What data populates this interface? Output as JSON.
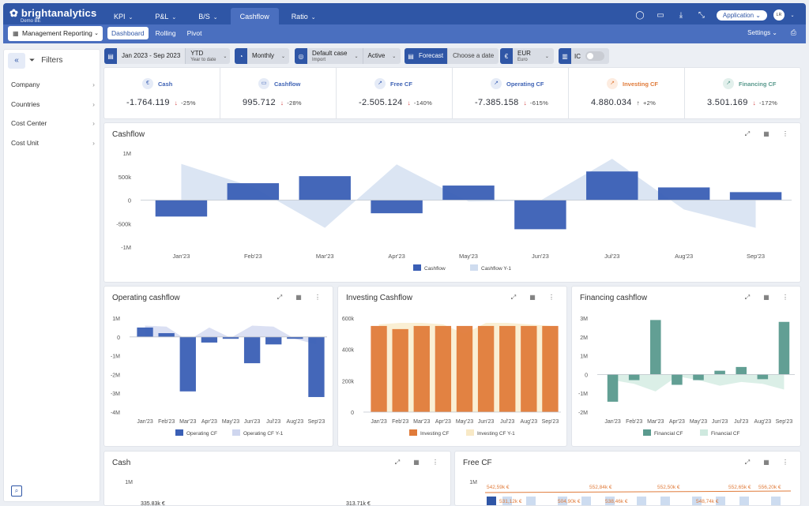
{
  "app": {
    "logo": "brightanalytics",
    "logo_sub": "Demo BE"
  },
  "topnav": [
    {
      "label": "KPI",
      "dropdown": true
    },
    {
      "label": "P&L",
      "dropdown": true
    },
    {
      "label": "B/S",
      "dropdown": true
    },
    {
      "label": "Cashflow",
      "dropdown": false,
      "active": true
    },
    {
      "label": "Ratio",
      "dropdown": true
    }
  ],
  "header_icons": [
    "chat-icon",
    "keyboard-icon",
    "download-icon",
    "compress-icon"
  ],
  "app_select": "Application",
  "avatar": "LR",
  "mgmt_select": "Management Reporting",
  "subtabs": [
    "Dashboard",
    "Rolling",
    "Pivot"
  ],
  "settings": "Settings",
  "sidebar": {
    "title": "Filters",
    "items": [
      "Company",
      "Countries",
      "Cost Center",
      "Cost Unit"
    ]
  },
  "filterbar": {
    "period": "Jan 2023 - Sep 2023",
    "ytd": "YTD",
    "ytd_sub": "Year to date",
    "freq": "Monthly",
    "scenario": "Default case",
    "scenario_sub": "Import",
    "status": "Active",
    "forecast": "Forecast",
    "date_placeholder": "Choose a date",
    "currency": "EUR",
    "currency_sub": "Euro",
    "ic": "IC"
  },
  "kpis": [
    {
      "name": "Cash",
      "value": "-1.764.119",
      "delta": "-25%",
      "dir": "down",
      "color": "#3f63b5",
      "bg": "#e5ebf7",
      "icon": "€"
    },
    {
      "name": "Cashflow",
      "value": "995.712",
      "delta": "-28%",
      "dir": "down",
      "color": "#3f63b5",
      "bg": "#e5ebf7",
      "icon": "▭"
    },
    {
      "name": "Free CF",
      "value": "-2.505.124",
      "delta": "-140%",
      "dir": "down",
      "color": "#3f63b5",
      "bg": "#e5ebf7",
      "icon": "↗"
    },
    {
      "name": "Operating CF",
      "value": "-7.385.158",
      "delta": "-615%",
      "dir": "down",
      "color": "#3f63b5",
      "bg": "#e5ebf7",
      "icon": "↗"
    },
    {
      "name": "Investing CF",
      "value": "4.880.034",
      "delta": "+2%",
      "dir": "up",
      "color": "#e07b3a",
      "bg": "#fdece0",
      "icon": "↗"
    },
    {
      "name": "Financing CF",
      "value": "3.501.169",
      "delta": "-172%",
      "dir": "down",
      "color": "#5a9a8e",
      "bg": "#e2f0ec",
      "icon": "↗"
    }
  ],
  "cards": {
    "cashflow": "Cashflow",
    "operating": "Operating cashflow",
    "investing": "Investing Cashflow",
    "financing": "Financing cashflow",
    "cash": "Cash",
    "freecf": "Free CF"
  },
  "chart_data": [
    {
      "type": "bar",
      "title": "Cashflow",
      "categories": [
        "Jan'23",
        "Feb'23",
        "Mar'23",
        "Apr'23",
        "May'23",
        "Jun'23",
        "Jul'23",
        "Aug'23",
        "Sep'23"
      ],
      "yticks": [
        "1M",
        "500k",
        "0",
        "-500k",
        "-1M"
      ],
      "ylim": [
        -1000000,
        1000000
      ],
      "series": [
        {
          "name": "Cashflow",
          "type": "bar",
          "color": "#3a5fb5",
          "values": [
            -350000,
            360000,
            510000,
            -280000,
            310000,
            -620000,
            610000,
            270000,
            170000
          ]
        },
        {
          "name": "Cashflow Y-1",
          "type": "area",
          "color": "#cfdcef",
          "values": [
            770000,
            280000,
            -590000,
            760000,
            -30000,
            -10000,
            880000,
            -200000,
            -590000
          ]
        }
      ]
    },
    {
      "type": "bar",
      "title": "Operating cashflow",
      "categories": [
        "Jan'23",
        "Feb'23",
        "Mar'23",
        "Apr'23",
        "May'23",
        "Jun'23",
        "Jul'23",
        "Aug'23",
        "Sep'23"
      ],
      "yticks": [
        "1M",
        "0",
        "-1M",
        "-2M",
        "-3M",
        "-4M"
      ],
      "ylim": [
        -4000000,
        1000000
      ],
      "series": [
        {
          "name": "Operating CF",
          "type": "bar",
          "color": "#3a5fb5",
          "values": [
            500000,
            200000,
            -2900000,
            -300000,
            -100000,
            -1400000,
            -400000,
            -100000,
            -3200000
          ]
        },
        {
          "name": "Operating CF Y-1",
          "type": "area",
          "color": "#cfd6ef",
          "values": [
            600000,
            550000,
            -200000,
            500000,
            -50000,
            600000,
            550000,
            -100000,
            -400000
          ]
        }
      ]
    },
    {
      "type": "bar",
      "title": "Investing Cashflow",
      "categories": [
        "Jan'23",
        "Feb'23",
        "Mar'23",
        "Apr'23",
        "May'23",
        "Jun'23",
        "Jul'23",
        "Aug'23",
        "Sep'23"
      ],
      "yticks": [
        "600k",
        "400k",
        "200k",
        "0"
      ],
      "ylim": [
        0,
        600000
      ],
      "series": [
        {
          "name": "Investing CF",
          "type": "bar",
          "color": "#e07b3a",
          "values": [
            550000,
            530000,
            550000,
            550000,
            550000,
            550000,
            550000,
            550000,
            550000
          ]
        },
        {
          "name": "Investing CF Y-1",
          "type": "area",
          "color": "#f8e9c6",
          "values": [
            560000,
            570000,
            570000,
            560000,
            500000,
            570000,
            570000,
            560000,
            550000
          ]
        }
      ]
    },
    {
      "type": "bar",
      "title": "Financing cashflow",
      "categories": [
        "Jan'23",
        "Feb'23",
        "Mar'23",
        "Apr'23",
        "May'23",
        "Jun'23",
        "Jul'23",
        "Aug'23",
        "Sep'23"
      ],
      "yticks": [
        "3M",
        "2M",
        "1M",
        "0",
        "-1M",
        "-2M"
      ],
      "ylim": [
        -2000000,
        3000000
      ],
      "series": [
        {
          "name": "Financial CF",
          "type": "bar",
          "color": "#5a9a8e",
          "values": [
            -1450000,
            -300000,
            2900000,
            -550000,
            -300000,
            200000,
            400000,
            -250000,
            2800000
          ]
        },
        {
          "name": "Financial CF",
          "type": "area",
          "color": "#cfe9df",
          "values": [
            -300000,
            -500000,
            -900000,
            -100000,
            -300000,
            -600000,
            -400000,
            -500000,
            -800000
          ]
        }
      ]
    }
  ],
  "cash_chart": {
    "ytick": "1M",
    "labels": [
      "335,83k €",
      "313,71k €"
    ]
  },
  "freecf_chart": {
    "ytick": "1M",
    "top_labels": [
      "542,59k €",
      "552,84k €",
      "552,50k €",
      "552,65k €",
      "556,20k €"
    ],
    "bot_labels": [
      "531,12k €",
      "504,90k €",
      "538,46k €",
      "548,74k €"
    ]
  }
}
